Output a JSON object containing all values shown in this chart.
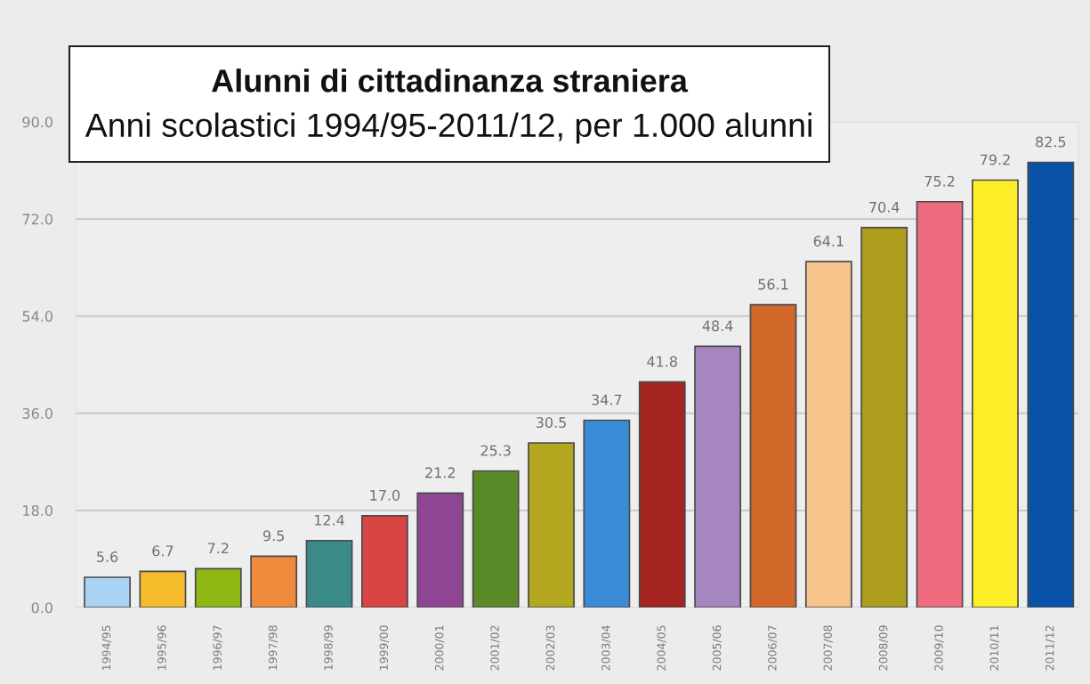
{
  "chart_data": {
    "type": "bar",
    "title": "Alunni di cittadinanza straniera",
    "subtitle": "Anni scolastici 1994/95-2011/12, per 1.000 alunni",
    "categories": [
      "1994/95",
      "1995/96",
      "1996/97",
      "1997/98",
      "1998/99",
      "1999/00",
      "2000/01",
      "2001/02",
      "2002/03",
      "2003/04",
      "2004/05",
      "2005/06",
      "2006/07",
      "2007/08",
      "2008/09",
      "2009/10",
      "2010/11",
      "2011/12"
    ],
    "values": [
      5.6,
      6.7,
      7.2,
      9.5,
      12.4,
      17.0,
      21.2,
      25.3,
      30.5,
      34.7,
      41.8,
      48.4,
      56.1,
      64.1,
      70.4,
      75.2,
      79.2,
      82.5
    ],
    "value_labels": [
      "5.6",
      "6.7",
      "7.2",
      "9.5",
      "12.4",
      "17.0",
      "21.2",
      "25.3",
      "30.5",
      "34.7",
      "41.8",
      "48.4",
      "56.1",
      "64.1",
      "70.4",
      "75.2",
      "79.2",
      "82.5"
    ],
    "colors": [
      "#a9d4f5",
      "#f5bb2a",
      "#8db814",
      "#f08a3c",
      "#3a8a88",
      "#d94444",
      "#8e4593",
      "#5a8a28",
      "#b3a81f",
      "#3a8bd8",
      "#a32420",
      "#a586c0",
      "#d2672a",
      "#f6c48b",
      "#ae9e1e",
      "#ee6b80",
      "#fdee2a",
      "#0a52a8"
    ],
    "ylim": [
      0,
      90
    ],
    "yticks": [
      {
        "value": 0,
        "label": "0.0"
      },
      {
        "value": 18,
        "label": "18.0"
      },
      {
        "value": 36,
        "label": "36.0"
      },
      {
        "value": 54,
        "label": "54.0"
      },
      {
        "value": 72,
        "label": "72.0"
      },
      {
        "value": 90,
        "label": "90.0"
      }
    ],
    "grid": "y"
  }
}
